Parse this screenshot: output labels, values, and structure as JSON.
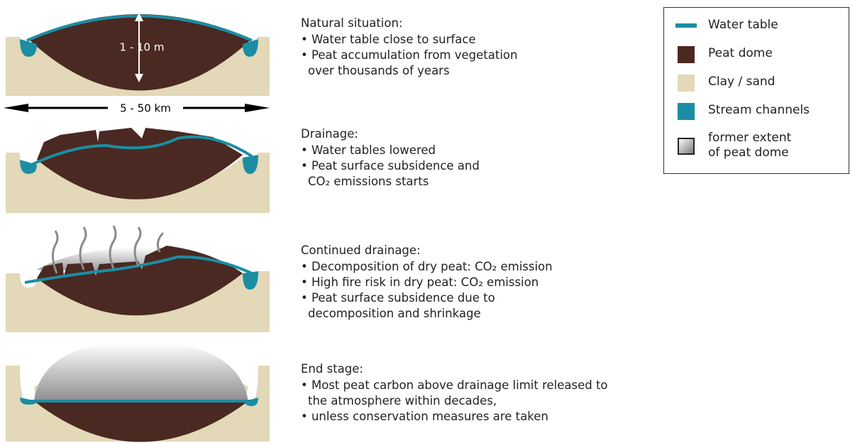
{
  "dimensions": {
    "height": "1 - 10  m",
    "width": "5 - 50 km"
  },
  "panels": [
    {
      "title": "Natural situation:",
      "bullets": [
        "• Water table close to surface",
        "• Peat accumulation from vegetation\nover thousands of years"
      ]
    },
    {
      "title": "Drainage:",
      "bullets": [
        "• Water tables lowered",
        "• Peat surface subsidence and\nCO₂ emissions starts"
      ]
    },
    {
      "title": "Continued drainage:",
      "bullets": [
        "• Decomposition of dry peat: CO₂ emission",
        "• High fire risk in dry peat: CO₂ emission",
        "• Peat surface subsidence due to\ndecomposition and shrinkage"
      ]
    },
    {
      "title": "End stage:",
      "bullets": [
        "• Most peat carbon above drainage limit released to\nthe atmosphere within decades,",
        "• unless conservation measures are taken"
      ]
    }
  ],
  "legend": {
    "items": [
      "Water table",
      "Peat dome",
      "Clay / sand",
      "Stream channels",
      "former extent\nof peat dome"
    ]
  }
}
